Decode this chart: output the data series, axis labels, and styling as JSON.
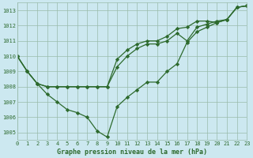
{
  "title": "Graphe pression niveau de la mer (hPa)",
  "bg_color": "#cce8f0",
  "line_color": "#2d6a2d",
  "marker_color": "#2d6a2d",
  "grid_color": "#99bbaa",
  "x_min": 0,
  "x_max": 23,
  "y_min": 1004.5,
  "y_max": 1013.5,
  "y_ticks": [
    1005,
    1006,
    1007,
    1008,
    1009,
    1010,
    1011,
    1012,
    1013
  ],
  "s1": [
    1010.0,
    1009.0,
    1008.2,
    1007.5,
    1007.0,
    1006.5,
    1006.3,
    1006.0,
    1005.1,
    1004.7,
    1006.7,
    1007.3,
    1007.8,
    1008.3,
    1008.3,
    1009.0,
    1009.5,
    1010.9,
    1011.6,
    1011.9,
    1012.2,
    1012.4,
    1013.2,
    1013.3
  ],
  "s2": [
    1010.0,
    1009.0,
    1008.2,
    1008.0,
    1008.0,
    1008.0,
    1008.0,
    1008.0,
    1008.0,
    1008.0,
    1009.3,
    1010.0,
    1010.5,
    1010.8,
    1010.8,
    1011.0,
    1011.5,
    1011.0,
    1011.9,
    1012.1,
    1012.3,
    1012.4,
    1013.2,
    1013.3
  ],
  "s3": [
    1010.0,
    1009.0,
    1008.2,
    1008.0,
    1008.0,
    1008.0,
    1008.0,
    1008.0,
    1008.0,
    1008.0,
    1009.8,
    1010.4,
    1010.8,
    1011.0,
    1011.0,
    1011.3,
    1011.8,
    1011.9,
    1012.3,
    1012.3,
    1012.2,
    1012.4,
    1013.2,
    1013.3
  ]
}
